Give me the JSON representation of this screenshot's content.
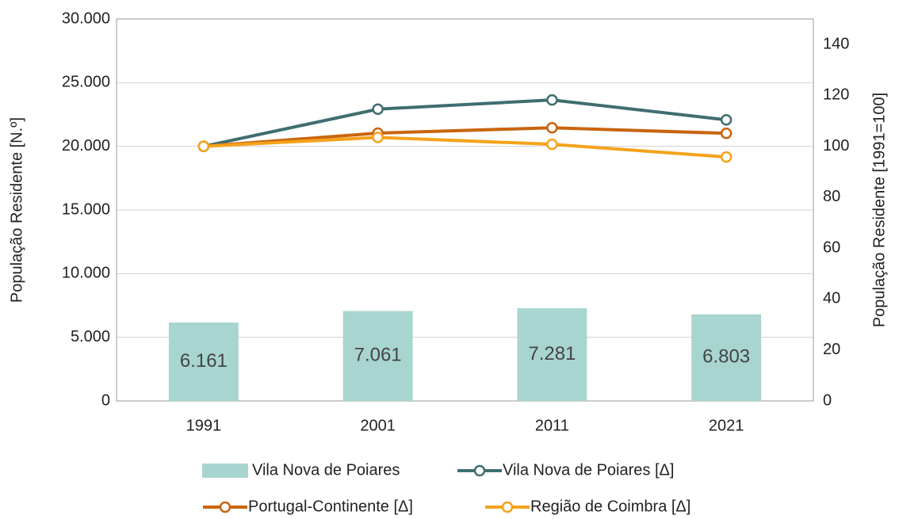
{
  "chart_data": {
    "type": "bar",
    "categories": [
      "1991",
      "2001",
      "2011",
      "2021"
    ],
    "ylabel": "População Residente [N.º]",
    "y2label": "População Residente [1991=100]",
    "ylim": [
      0,
      30000
    ],
    "yticks": [
      0,
      {
        "value": 5000,
        "label": "5.000"
      },
      {
        "value": 10000,
        "label": "10.000"
      },
      {
        "value": 15000,
        "label": "15.000"
      },
      {
        "value": 20000,
        "label": "20.000"
      },
      {
        "value": 25000,
        "label": "25.000"
      },
      {
        "value": 30000,
        "label": "30.000"
      }
    ],
    "y2lim": [
      0,
      150
    ],
    "y2ticks": [
      0,
      20,
      40,
      60,
      80,
      100,
      120,
      140
    ],
    "grid": true,
    "legend": "bottom",
    "series": [
      {
        "name": "Vila Nova de Poiares",
        "type": "bar",
        "color": "#a8d5d0",
        "values": [
          6161,
          7061,
          7281,
          6803
        ],
        "value_labels": [
          "6.161",
          "7.061",
          "7.281",
          "6.803"
        ]
      },
      {
        "name": "Vila Nova de Poiares [Δ]",
        "type": "line",
        "axis": "y2",
        "color": "#3f6e70",
        "values": [
          100,
          114.6,
          118.2,
          110.4
        ]
      },
      {
        "name": "Portugal-Continente [Δ]",
        "type": "line",
        "axis": "y2",
        "color": "#c9650c",
        "values": [
          100,
          105.2,
          107.3,
          105.1
        ]
      },
      {
        "name": "Região de Coimbra [Δ]",
        "type": "line",
        "axis": "y2",
        "color": "#f5a21b",
        "values": [
          100,
          103.5,
          100.8,
          95.8
        ]
      }
    ]
  }
}
